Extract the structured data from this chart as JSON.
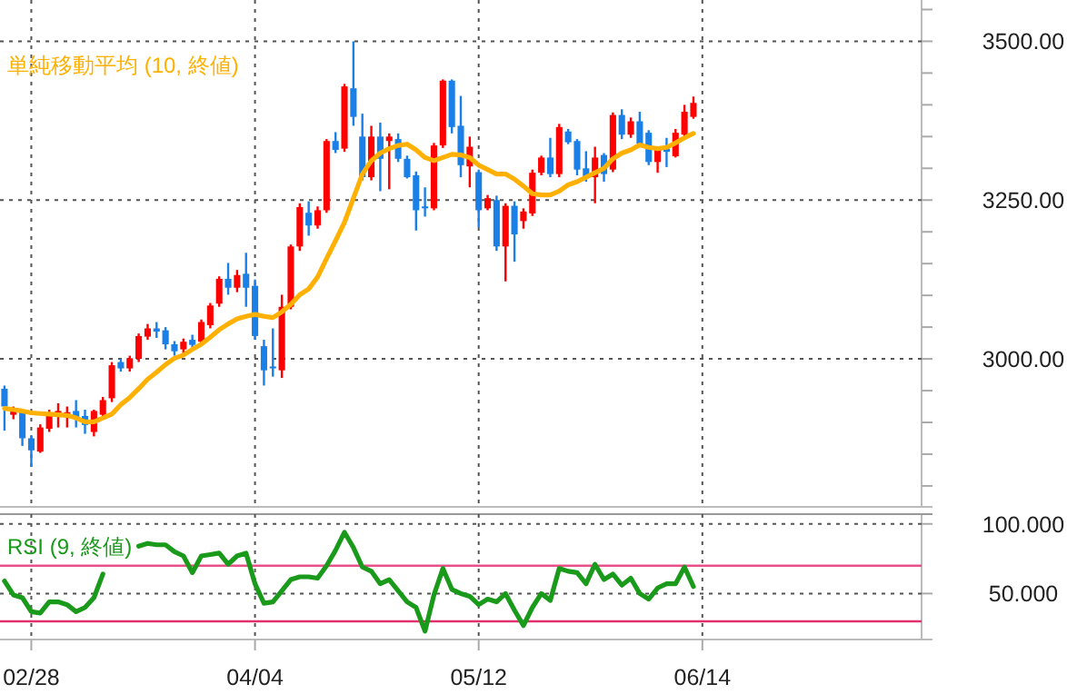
{
  "chart_data": [
    {
      "type": "candlestick",
      "categories": [
        null,
        null,
        null,
        null,
        null,
        null,
        null,
        null,
        null,
        null,
        null,
        null,
        null,
        null,
        null,
        null,
        null,
        null,
        null,
        null,
        null,
        null,
        null,
        null,
        null,
        null,
        null,
        null,
        null,
        null,
        null,
        null,
        null,
        null,
        null,
        null,
        null,
        null,
        null,
        null,
        null,
        null,
        null,
        null,
        null,
        null,
        null,
        null,
        null,
        null,
        null,
        null,
        null,
        null,
        null,
        null,
        null,
        null,
        null,
        null,
        null,
        null,
        null,
        null,
        null,
        null,
        null,
        null,
        null,
        null,
        null,
        null,
        null,
        null,
        null,
        null,
        null,
        null,
        null,
        null,
        null,
        null,
        null,
        null,
        null,
        null,
        null,
        null,
        null,
        null,
        null,
        null,
        null,
        null,
        null,
        null,
        null,
        null,
        null,
        null,
        null,
        null,
        null
      ],
      "ohlc": [
        [
          2953,
          2958,
          2887,
          2925
        ],
        [
          2912,
          2925,
          2905,
          2918
        ],
        [
          2916,
          2920,
          2863,
          2875
        ],
        [
          2875,
          2880,
          2830,
          2856
        ],
        [
          2854,
          2897,
          2852,
          2892
        ],
        [
          2890,
          2920,
          2885,
          2915
        ],
        [
          2915,
          2930,
          2892,
          2918
        ],
        [
          2912,
          2925,
          2892,
          2916
        ],
        [
          2918,
          2935,
          2892,
          2908
        ],
        [
          2910,
          2920,
          2882,
          2896
        ],
        [
          2885,
          2920,
          2878,
          2918
        ],
        [
          2912,
          2940,
          2905,
          2935
        ],
        [
          2938,
          2995,
          2932,
          2990
        ],
        [
          2995,
          3000,
          2980,
          2985
        ],
        [
          2985,
          3005,
          2980,
          3001
        ],
        [
          3000,
          3040,
          2995,
          3036
        ],
        [
          3035,
          3055,
          3030,
          3048
        ],
        [
          3048,
          3058,
          3033,
          3043
        ],
        [
          3045,
          3050,
          3015,
          3023
        ],
        [
          3023,
          3028,
          3005,
          3012
        ],
        [
          3015,
          3032,
          3005,
          3027
        ],
        [
          3030,
          3038,
          3017,
          3022
        ],
        [
          3027,
          3062,
          3023,
          3058
        ],
        [
          3053,
          3088,
          3048,
          3084
        ],
        [
          3087,
          3130,
          3082,
          3126
        ],
        [
          3126,
          3151,
          3101,
          3112
        ],
        [
          3112,
          3140,
          3105,
          3132
        ],
        [
          3134,
          3167,
          3082,
          3112
        ],
        [
          3115,
          3125,
          3030,
          3036
        ],
        [
          3020,
          3030,
          2958,
          2982
        ],
        [
          2988,
          3048,
          2972,
          2985
        ],
        [
          2982,
          3101,
          2970,
          3082
        ],
        [
          3082,
          3180,
          3078,
          3177
        ],
        [
          3177,
          3245,
          3170,
          3239
        ],
        [
          3230,
          3248,
          3194,
          3210
        ],
        [
          3210,
          3240,
          3205,
          3234
        ],
        [
          3234,
          3346,
          3230,
          3343
        ],
        [
          3343,
          3357,
          3324,
          3329
        ],
        [
          3331,
          3433,
          3326,
          3429
        ],
        [
          3426,
          3500,
          3367,
          3381
        ],
        [
          3350,
          3386,
          3281,
          3286
        ],
        [
          3286,
          3367,
          3281,
          3350
        ],
        [
          3350,
          3372,
          3264,
          3315
        ],
        [
          3343,
          3355,
          3267,
          3350
        ],
        [
          3346,
          3355,
          3310,
          3315
        ],
        [
          3315,
          3320,
          3284,
          3286
        ],
        [
          3289,
          3295,
          3202,
          3234
        ],
        [
          3240,
          3270,
          3224,
          3237
        ],
        [
          3237,
          3340,
          3234,
          3336
        ],
        [
          3336,
          3440,
          3332,
          3438
        ],
        [
          3438,
          3440,
          3355,
          3365
        ],
        [
          3367,
          3414,
          3286,
          3305
        ],
        [
          3303,
          3350,
          3270,
          3334
        ],
        [
          3294,
          3298,
          3207,
          3234
        ],
        [
          3237,
          3258,
          3234,
          3253
        ],
        [
          3250,
          3257,
          3170,
          3177
        ],
        [
          3177,
          3245,
          3122,
          3241
        ],
        [
          3241,
          3248,
          3153,
          3196
        ],
        [
          3217,
          3237,
          3205,
          3232
        ],
        [
          3229,
          3298,
          3225,
          3293
        ],
        [
          3293,
          3320,
          3289,
          3317
        ],
        [
          3317,
          3348,
          3286,
          3291
        ],
        [
          3291,
          3370,
          3286,
          3365
        ],
        [
          3358,
          3362,
          3338,
          3341
        ],
        [
          3343,
          3346,
          3289,
          3298
        ],
        [
          3300,
          3327,
          3279,
          3286
        ],
        [
          3286,
          3334,
          3245,
          3317
        ],
        [
          3321,
          3324,
          3279,
          3291
        ],
        [
          3298,
          3388,
          3294,
          3384
        ],
        [
          3384,
          3393,
          3346,
          3353
        ],
        [
          3353,
          3380,
          3348,
          3374
        ],
        [
          3374,
          3389,
          3334,
          3339
        ],
        [
          3356,
          3360,
          3305,
          3310
        ],
        [
          3310,
          3334,
          3293,
          3329
        ],
        [
          3331,
          3348,
          3302,
          3326
        ],
        [
          3319,
          3362,
          3317,
          3356
        ],
        [
          3353,
          3400,
          3348,
          3389
        ],
        [
          3381,
          3413,
          3378,
          3403
        ],
        null,
        null,
        null,
        null,
        null,
        null,
        null,
        null,
        null,
        null,
        null,
        null,
        null,
        null,
        null,
        null,
        null,
        null,
        null,
        null,
        null,
        null,
        null,
        null,
        null
      ],
      "colors": [
        "#1a7fe6",
        "#ff0000",
        "#1a7fe6",
        "#1a7fe6",
        "#ff0000",
        "#ff0000",
        "#ff0000",
        "#ff0000",
        "#1a7fe6",
        "#1a7fe6",
        "#ff0000",
        "#ff0000",
        "#ff0000",
        "#1a7fe6",
        "#ff0000",
        "#ff0000",
        "#ff0000",
        "#1a7fe6",
        "#1a7fe6",
        "#1a7fe6",
        "#ff0000",
        "#1a7fe6",
        "#ff0000",
        "#ff0000",
        "#ff0000",
        "#1a7fe6",
        "#ff0000",
        "#1a7fe6",
        "#1a7fe6",
        "#1a7fe6",
        "#1a7fe6",
        "#ff0000",
        "#ff0000",
        "#ff0000",
        "#1a7fe6",
        "#ff0000",
        "#ff0000",
        "#1a7fe6",
        "#ff0000",
        "#1a7fe6",
        "#1a7fe6",
        "#ff0000",
        "#1a7fe6",
        "#ff0000",
        "#1a7fe6",
        "#1a7fe6",
        "#1a7fe6",
        "#1a7fe6",
        "#ff0000",
        "#ff0000",
        "#1a7fe6",
        "#1a7fe6",
        "#ff0000",
        "#1a7fe6",
        "#ff0000",
        "#1a7fe6",
        "#ff0000",
        "#1a7fe6",
        "#ff0000",
        "#ff0000",
        "#ff0000",
        "#1a7fe6",
        "#ff0000",
        "#1a7fe6",
        "#1a7fe6",
        "#1a7fe6",
        "#ff0000",
        "#1a7fe6",
        "#ff0000",
        "#1a7fe6",
        "#ff0000",
        "#1a7fe6",
        "#1a7fe6",
        "#ff0000",
        "#1a7fe6",
        "#ff0000",
        "#ff0000",
        "#ff0000",
        null,
        null,
        null,
        null,
        null,
        null,
        null,
        null,
        null,
        null,
        null,
        null,
        null,
        null,
        null,
        null,
        null,
        null,
        null,
        null,
        null,
        null,
        null,
        null,
        null
      ],
      "series": [
        {
          "name": "単純移動平均 (10, 終値)",
          "type": "line",
          "color": "#ffb000",
          "values": [
            2922,
            2920,
            2918,
            2915,
            2914,
            2913,
            2912,
            2911,
            2907,
            2901,
            2901,
            2907,
            2913,
            2928,
            2939,
            2953,
            2968,
            2979,
            2991,
            3001,
            3006,
            3015,
            3023,
            3034,
            3046,
            3055,
            3063,
            3067,
            3070,
            3067,
            3065,
            3074,
            3086,
            3101,
            3110,
            3129,
            3158,
            3186,
            3215,
            3253,
            3291,
            3312,
            3324,
            3331,
            3336,
            3338,
            3329,
            3317,
            3312,
            3317,
            3322,
            3321,
            3317,
            3305,
            3298,
            3291,
            3291,
            3283,
            3272,
            3260,
            3258,
            3258,
            3264,
            3274,
            3279,
            3286,
            3293,
            3300,
            3315,
            3324,
            3329,
            3337,
            3333,
            3331,
            3333,
            3340,
            3348,
            3355,
            null,
            null,
            null,
            null,
            null,
            null,
            null,
            null,
            null,
            null,
            null,
            null,
            null,
            null,
            null,
            null,
            null,
            null,
            null,
            null,
            null,
            null,
            null,
            null,
            null
          ]
        }
      ],
      "ylim": [
        2767,
        3565
      ],
      "yticks": [
        {
          "value": 2800,
          "label": null
        },
        {
          "value": 2850,
          "label": null
        },
        {
          "value": 2900,
          "label": null
        },
        {
          "value": 2950,
          "label": null
        },
        {
          "value": 3000,
          "label": "3000.00"
        },
        {
          "value": 3050,
          "label": null
        },
        {
          "value": 3100,
          "label": null
        },
        {
          "value": 3150,
          "label": null
        },
        {
          "value": 3200,
          "label": null
        },
        {
          "value": 3250,
          "label": "3250.00"
        },
        {
          "value": 3300,
          "label": null
        },
        {
          "value": 3350,
          "label": null
        },
        {
          "value": 3400,
          "label": null
        },
        {
          "value": 3450,
          "label": null
        },
        {
          "value": 3500,
          "label": "3500.00"
        },
        {
          "value": 3550,
          "label": null
        }
      ],
      "grid": true,
      "tick_labels": "y"
    },
    {
      "type": "line",
      "categories": [
        null,
        null,
        null,
        "02/28",
        null,
        null,
        null,
        null,
        null,
        null,
        null,
        null,
        null,
        null,
        null,
        null,
        null,
        null,
        null,
        null,
        null,
        null,
        null,
        null,
        null,
        null,
        null,
        null,
        "04/04",
        null,
        null,
        null,
        null,
        null,
        null,
        null,
        null,
        null,
        null,
        null,
        null,
        null,
        null,
        null,
        null,
        null,
        null,
        null,
        null,
        null,
        null,
        null,
        null,
        "05/12",
        null,
        null,
        null,
        null,
        null,
        null,
        null,
        null,
        null,
        null,
        null,
        null,
        null,
        null,
        null,
        null,
        null,
        null,
        null,
        null,
        null,
        null,
        null,
        null,
        "06/14",
        null,
        null,
        null,
        null,
        null,
        null,
        null,
        null,
        null,
        null,
        null,
        null,
        null,
        null,
        null,
        null,
        null,
        null,
        null,
        null,
        null,
        null,
        null,
        null
      ],
      "series": [
        {
          "name": "RSI (9, 終値)",
          "color": "#1a9a1a",
          "values": [
            59,
            49,
            47,
            37,
            36,
            44,
            44,
            42,
            37,
            40,
            47,
            64,
            null,
            null,
            null,
            84,
            86,
            85,
            85,
            80,
            77,
            65,
            77,
            78,
            79,
            71,
            77,
            79,
            57,
            43,
            44,
            52,
            60,
            62,
            62,
            61,
            70,
            81,
            94,
            83,
            69,
            66,
            57,
            60,
            52,
            44,
            40,
            23,
            49,
            68,
            53,
            50,
            48,
            42,
            46,
            44,
            50,
            38,
            27,
            40,
            50,
            45,
            68,
            66,
            65,
            57,
            71,
            60,
            64,
            56,
            61,
            50,
            46,
            54,
            57,
            57,
            69,
            55,
            null,
            null,
            null,
            null,
            null,
            null,
            null,
            null,
            null,
            null,
            null,
            null,
            null,
            null,
            null,
            null,
            null,
            null,
            null,
            null,
            null,
            null,
            null,
            null,
            null
          ]
        }
      ],
      "ylim": [
        17,
        107
      ],
      "yticks": [
        {
          "value": 100,
          "label": "100.000"
        },
        {
          "value": 50,
          "label": "50.000"
        }
      ],
      "ref_lines": [
        {
          "axis": "y",
          "value": 70,
          "color": "#e8508a"
        },
        {
          "axis": "y",
          "value": 30,
          "color": "#e0306e"
        }
      ],
      "grid": true
    }
  ]
}
